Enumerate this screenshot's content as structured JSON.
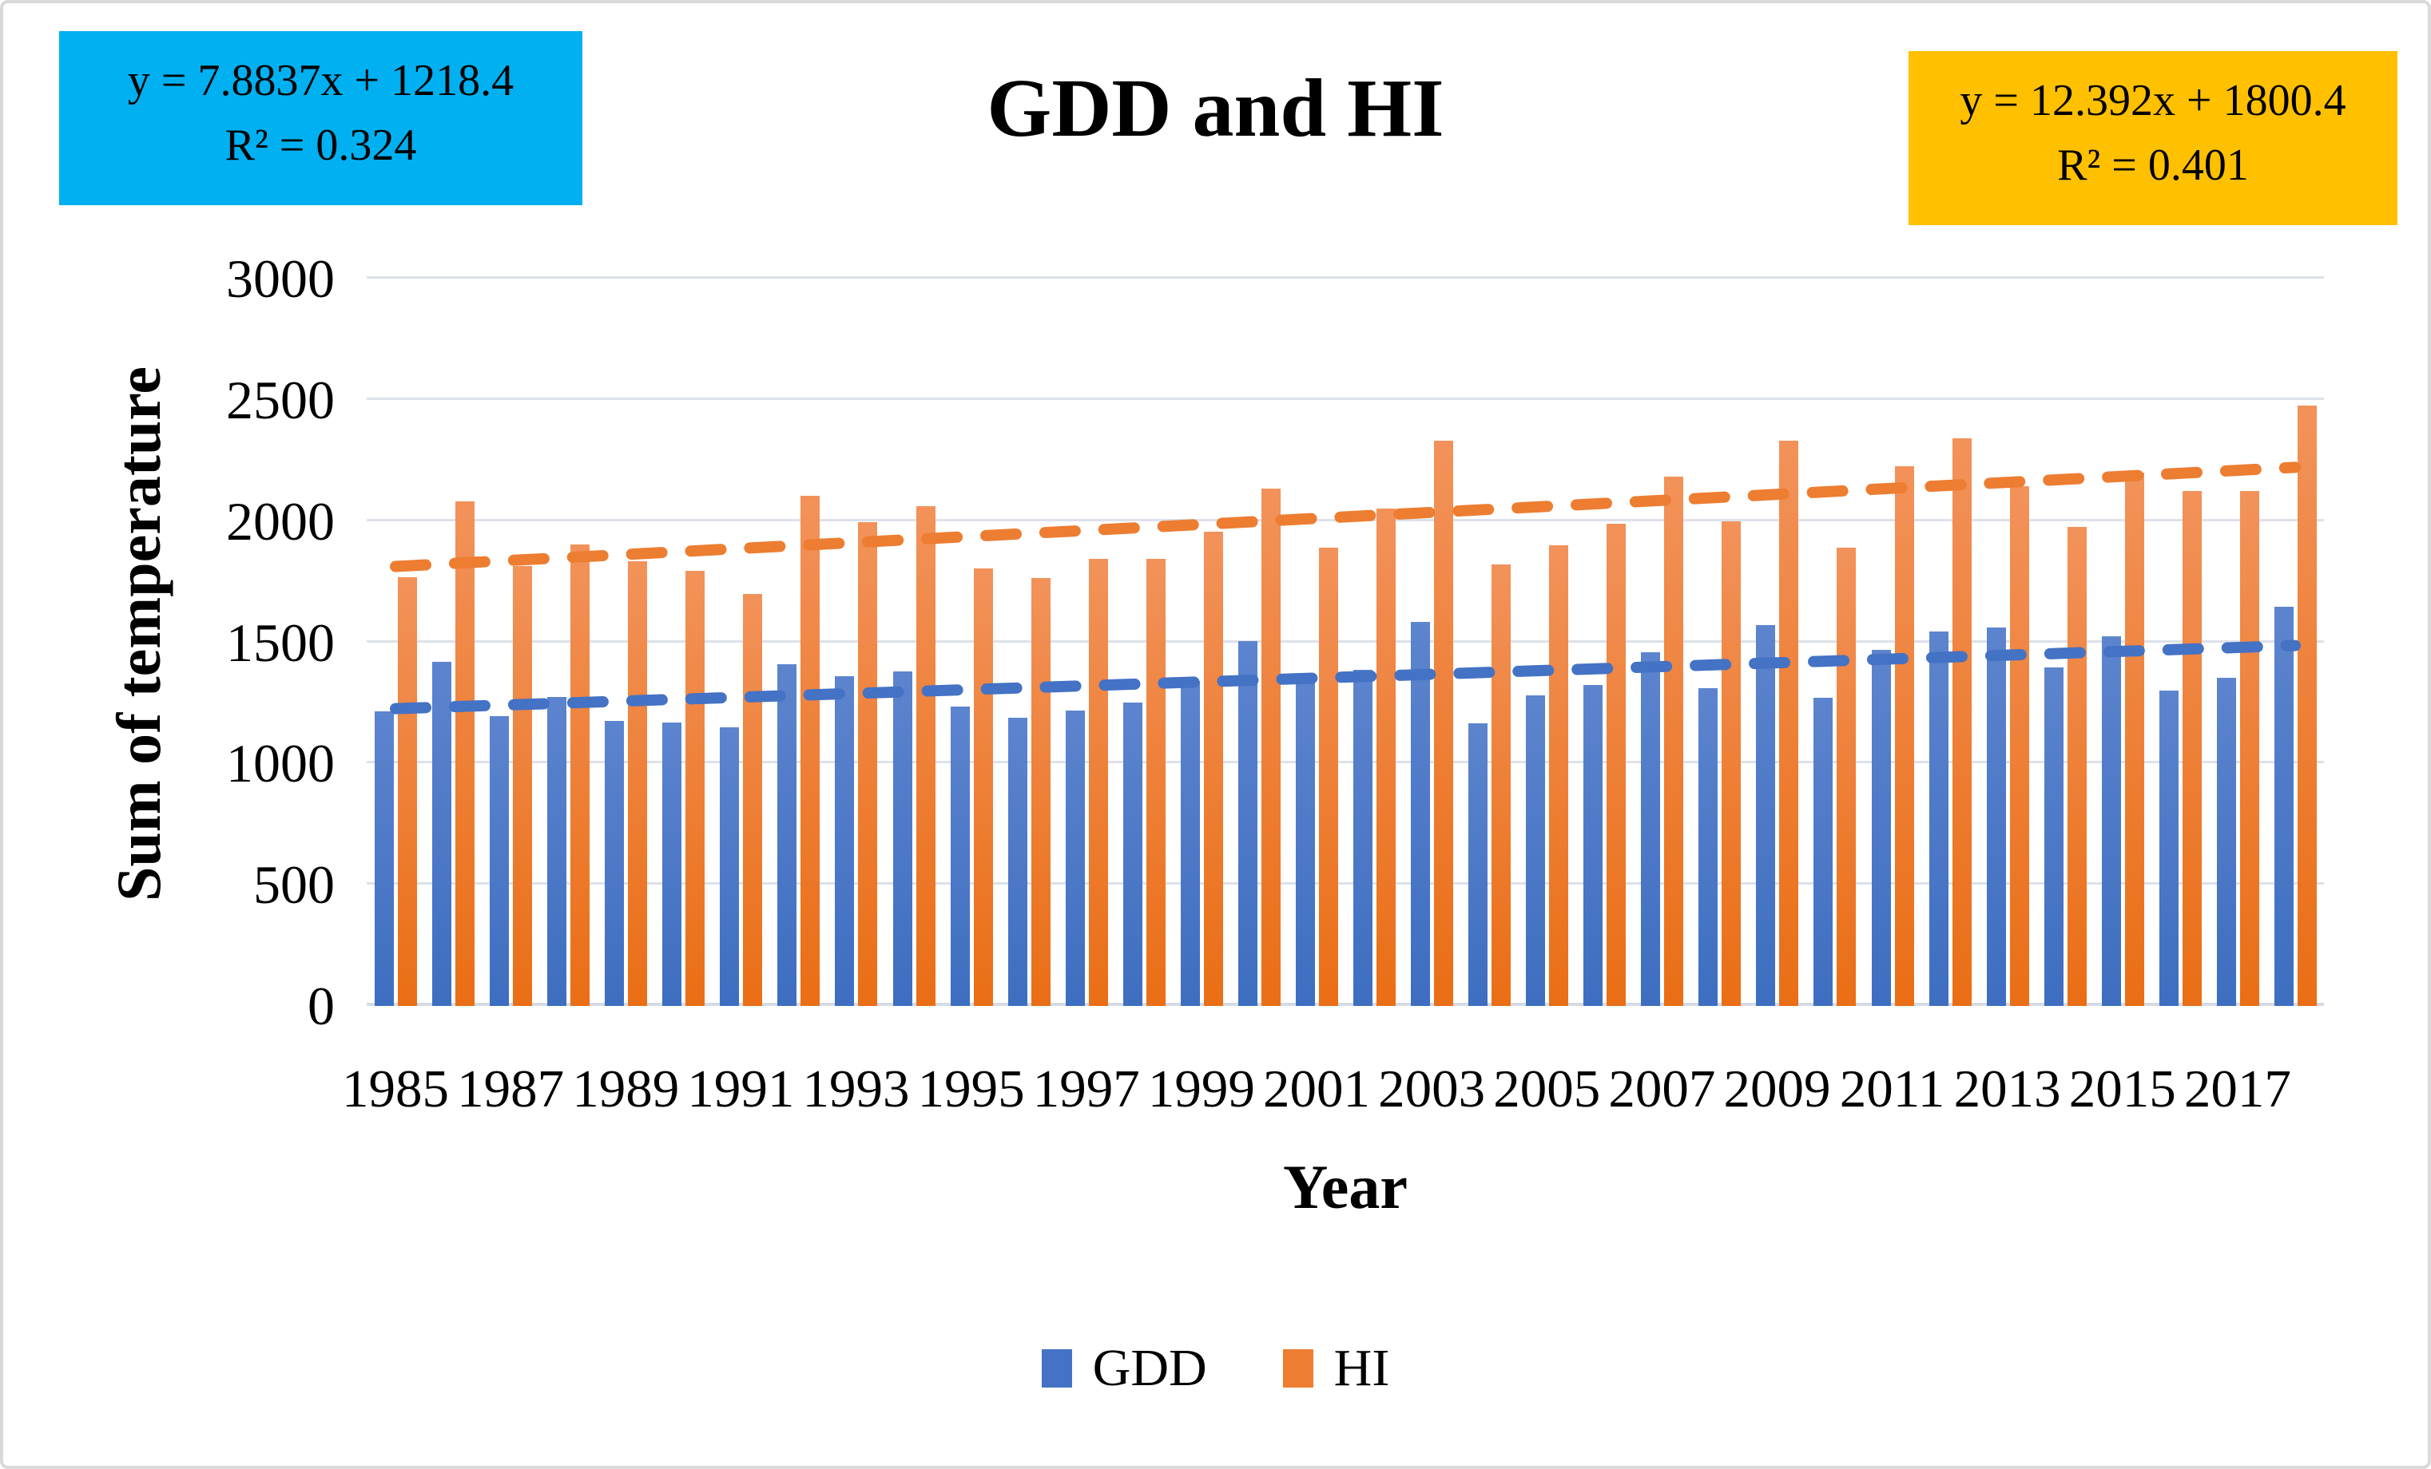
{
  "title": "GDD and HI",
  "annotations": {
    "gdd": {
      "equation": "y = 7.8837x + 1218.4",
      "r2": "R² = 0.324",
      "bg_color": "#00B0F0"
    },
    "hi": {
      "equation": "y = 12.392x + 1800.4",
      "r2": "R² = 0.401",
      "bg_color": "#FFC000"
    }
  },
  "chart_data": {
    "type": "bar",
    "title": "GDD and HI",
    "xlabel": "Year",
    "ylabel": "Sum of temperature",
    "ylim": [
      0,
      3000
    ],
    "yticks": [
      0,
      500,
      1000,
      1500,
      2000,
      2500,
      3000
    ],
    "grid": true,
    "legend_position": "bottom",
    "categories": [
      1985,
      1986,
      1987,
      1988,
      1989,
      1990,
      1991,
      1992,
      1993,
      1994,
      1995,
      1996,
      1997,
      1998,
      1999,
      2000,
      2001,
      2002,
      2003,
      2004,
      2005,
      2006,
      2007,
      2008,
      2009,
      2010,
      2011,
      2012,
      2013,
      2014,
      2015,
      2016,
      2017,
      2018
    ],
    "xtick_labels": [
      "1985",
      "1987",
      "1989",
      "1991",
      "1993",
      "1995",
      "1997",
      "1999",
      "2001",
      "2003",
      "2005",
      "2007",
      "2009",
      "2011",
      "2013",
      "2015",
      "2017"
    ],
    "series": [
      {
        "name": "GDD",
        "color": "#4472C4",
        "values": [
          1215,
          1420,
          1195,
          1275,
          1175,
          1170,
          1150,
          1410,
          1360,
          1380,
          1235,
          1190,
          1220,
          1250,
          1340,
          1505,
          1340,
          1385,
          1585,
          1165,
          1280,
          1325,
          1460,
          1310,
          1570,
          1270,
          1470,
          1545,
          1560,
          1395,
          1525,
          1300,
          1355,
          1645
        ]
      },
      {
        "name": "HI",
        "color": "#ED7D31",
        "values": [
          1770,
          2080,
          1815,
          1905,
          1835,
          1795,
          1700,
          2105,
          1995,
          2060,
          1805,
          1765,
          1845,
          1845,
          1955,
          2135,
          1890,
          2050,
          2330,
          1820,
          1900,
          1990,
          2185,
          2000,
          2330,
          1890,
          2225,
          2340,
          2145,
          1975,
          2200,
          2125,
          2125,
          2475
        ]
      }
    ],
    "trendlines": [
      {
        "series": "GDD",
        "equation": "y = 7.8837x + 1218.4",
        "r2": "R² = 0.324",
        "slope": 7.8837,
        "intercept": 1218.4,
        "color": "#4472C4"
      },
      {
        "series": "HI",
        "equation": "y = 12.392x + 1800.4",
        "r2": "R² = 0.401",
        "slope": 12.392,
        "intercept": 1800.4,
        "color": "#ED7D31"
      }
    ]
  },
  "legend": {
    "items": [
      {
        "label": "GDD",
        "color": "#4472C4"
      },
      {
        "label": "HI",
        "color": "#ED7D31"
      }
    ]
  },
  "colors": {
    "grid": "#DCE1EA",
    "gdd_box_bg": "#00B0F0",
    "hi_box_bg": "#FFC000"
  }
}
